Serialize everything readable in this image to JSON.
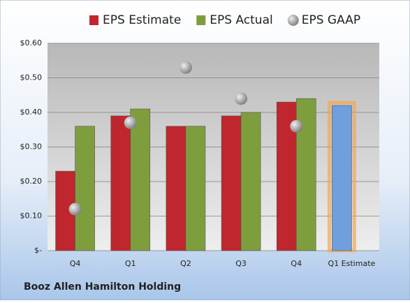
{
  "chart_data": {
    "type": "bar",
    "title": "Booz Allen Hamilton Holding",
    "categories": [
      "Q4",
      "Q1",
      "Q2",
      "Q3",
      "Q4",
      "Q1 Estimate"
    ],
    "series": [
      {
        "name": "EPS Estimate",
        "color": "#c0262d",
        "values": [
          0.23,
          0.39,
          0.36,
          0.39,
          0.43,
          0.42
        ],
        "highlight_color": "#6f9fdc"
      },
      {
        "name": "EPS Actual",
        "color": "#7e9e3e",
        "values": [
          0.36,
          0.41,
          0.36,
          0.4,
          0.44,
          null
        ]
      },
      {
        "name": "EPS GAAP",
        "color": "#a8a8a8",
        "type": "scatter",
        "values": [
          0.12,
          0.37,
          0.53,
          0.44,
          0.36,
          null
        ]
      }
    ],
    "ylim": [
      0,
      0.6
    ],
    "yticks": [
      {
        "value": 0,
        "label": "$-"
      },
      {
        "value": 0.1,
        "label": "$0.10"
      },
      {
        "value": 0.2,
        "label": "$0.20"
      },
      {
        "value": 0.3,
        "label": "$0.30"
      },
      {
        "value": 0.4,
        "label": "$0.40"
      },
      {
        "value": 0.5,
        "label": "$0.50"
      },
      {
        "value": 0.6,
        "label": "$0.60"
      }
    ],
    "grid": true
  }
}
